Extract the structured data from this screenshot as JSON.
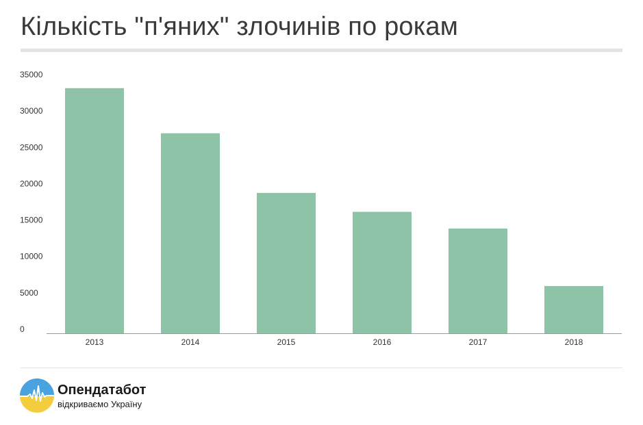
{
  "header": {
    "title": "Кількість \"п'яних\" злочинів по рокам"
  },
  "chart_data": {
    "type": "bar",
    "categories": [
      "2013",
      "2014",
      "2015",
      "2016",
      "2017",
      "2018"
    ],
    "values": [
      33700,
      27500,
      19300,
      16700,
      14400,
      6500
    ],
    "ylim": [
      0,
      35000
    ],
    "yticks": [
      "0",
      "5000",
      "10000",
      "15000",
      "20000",
      "25000",
      "30000",
      "35000"
    ],
    "bar_color": "#8fc3a7",
    "grid": false,
    "title": "",
    "xlabel": "",
    "ylabel": ""
  },
  "footer": {
    "brand_name": "Опендатабот",
    "brand_tagline": "відкриваємо Україну",
    "logo_colors": {
      "top": "#4aa3df",
      "bottom": "#f4cd3e"
    }
  }
}
